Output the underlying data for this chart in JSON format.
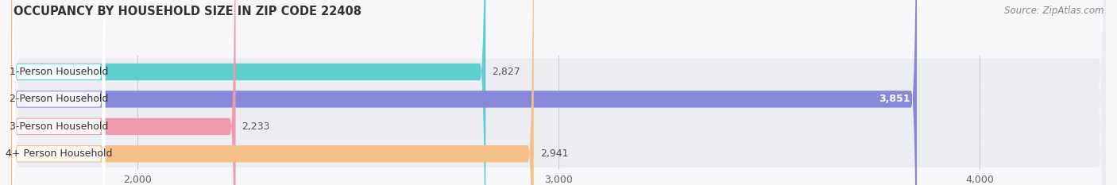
{
  "title": "OCCUPANCY BY HOUSEHOLD SIZE IN ZIP CODE 22408",
  "source": "Source: ZipAtlas.com",
  "categories": [
    "1-Person Household",
    "2-Person Household",
    "3-Person Household",
    "4+ Person Household"
  ],
  "values": [
    2827,
    3851,
    2233,
    2941
  ],
  "bar_colors": [
    "#5ecfcf",
    "#8888d8",
    "#f09ab0",
    "#f5bf88"
  ],
  "bar_bg_color": "#e8e8f0",
  "xlim": [
    1700,
    4300
  ],
  "xticks": [
    2000,
    3000,
    4000
  ],
  "xtick_labels": [
    "2,000",
    "3,000",
    "4,000"
  ],
  "label_color": "#666666",
  "title_color": "#333333",
  "background_color": "#f7f7fa",
  "bar_height": 0.62,
  "value_label_colors": [
    "#555555",
    "#ffffff",
    "#555555",
    "#555555"
  ],
  "row_bg_colors": [
    "#ededf4",
    "#ededf4",
    "#ededf4",
    "#ededf4"
  ]
}
